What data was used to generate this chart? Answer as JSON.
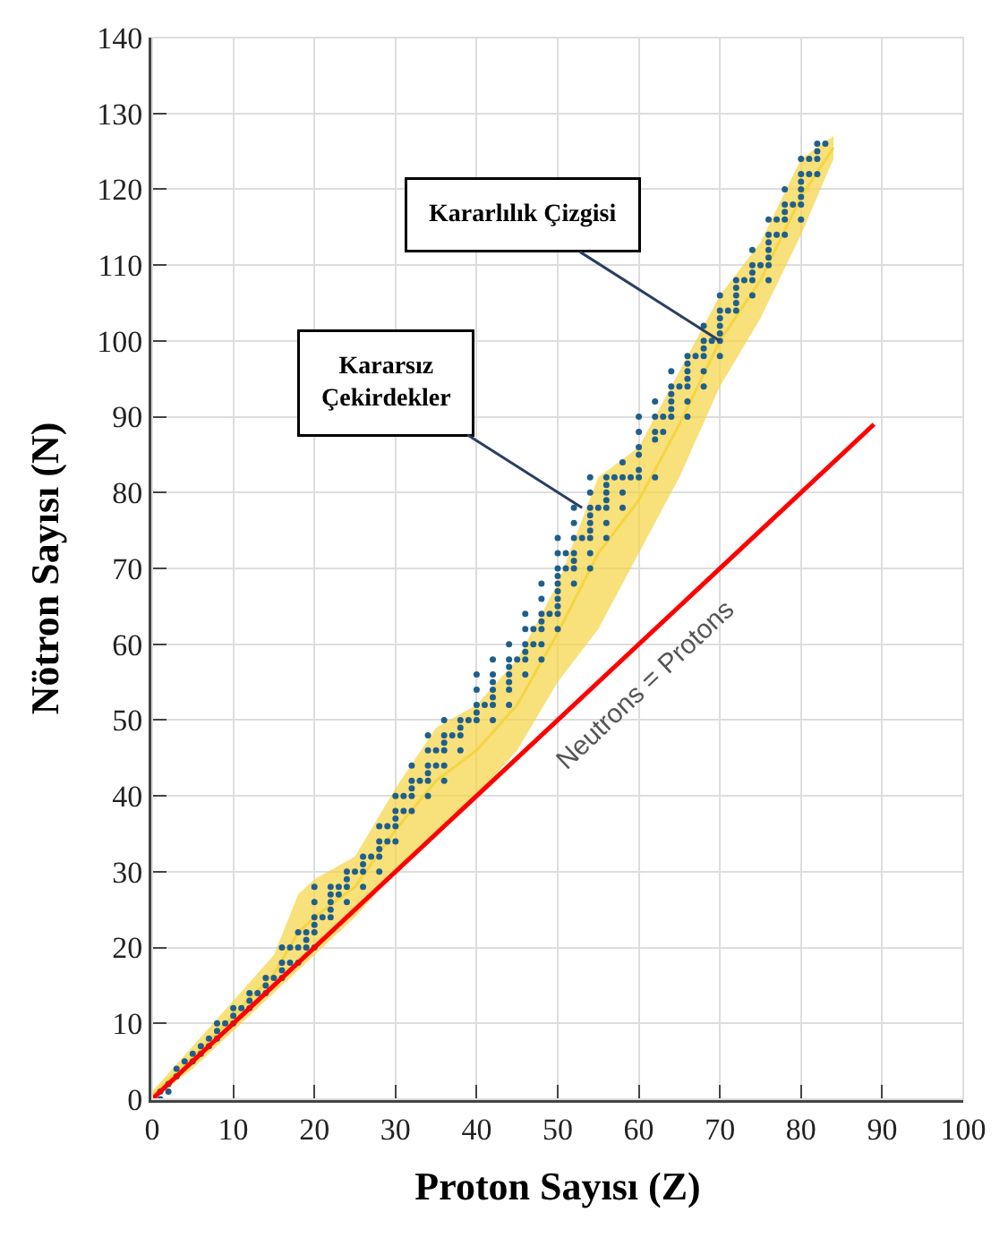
{
  "chart_data": {
    "type": "scatter",
    "xlabel": "Proton Sayısı (Z)",
    "ylabel": "Nötron Sayısı (N)",
    "xlim": [
      0,
      100
    ],
    "xticks": [
      0,
      10,
      20,
      30,
      40,
      50,
      60,
      70,
      80,
      90,
      100
    ],
    "ylim": [
      0,
      140
    ],
    "yticks": [
      0,
      10,
      20,
      30,
      40,
      50,
      60,
      70,
      80,
      90,
      100,
      110,
      120,
      130,
      140
    ],
    "grid": true,
    "legend": false,
    "series": [
      {
        "type": "line",
        "color": "#f5d442",
        "x": [
          0,
          5,
          10,
          15,
          18,
          20,
          25,
          30,
          35,
          40,
          45,
          50,
          55,
          60,
          65,
          70,
          75,
          80,
          84
        ],
        "values": [
          0.5,
          5.5,
          11,
          16.5,
          22,
          24,
          28,
          35.5,
          42,
          46,
          52,
          61.5,
          72,
          79,
          89,
          100,
          108,
          119,
          125.5
        ],
        "lower": [
          0,
          4,
          9,
          14,
          17,
          19,
          24,
          30,
          35,
          40,
          46,
          55,
          62,
          72,
          82,
          94,
          103,
          114,
          124
        ],
        "upper": [
          1,
          7,
          13,
          19,
          27,
          29,
          32,
          41,
          49,
          52,
          58,
          68,
          82,
          86,
          96,
          106,
          113,
          124,
          127
        ]
      },
      {
        "marker": "circle",
        "color": "#1f5f8b",
        "x": [
          1,
          1,
          2,
          2,
          3,
          3,
          4,
          5,
          5,
          6,
          6,
          7,
          7,
          8,
          8,
          8,
          9,
          10,
          10,
          10,
          11,
          12,
          12,
          12,
          13,
          14,
          14,
          14,
          15,
          16,
          16,
          16,
          16,
          17,
          17,
          18,
          18,
          18,
          19,
          19,
          19,
          20,
          20,
          20,
          20,
          20,
          20,
          21,
          22,
          22,
          22,
          22,
          22,
          23,
          23,
          24,
          24,
          24,
          24,
          25,
          26,
          26,
          26,
          26,
          27,
          28,
          28,
          28,
          28,
          28,
          29,
          29,
          30,
          30,
          30,
          30,
          30,
          31,
          31,
          32,
          32,
          32,
          32,
          32,
          33,
          34,
          34,
          34,
          34,
          34,
          34,
          35,
          35,
          36,
          36,
          36,
          36,
          36,
          36,
          37,
          38,
          38,
          38,
          38,
          39,
          40,
          40,
          40,
          40,
          40,
          41,
          42,
          42,
          42,
          42,
          42,
          42,
          42,
          44,
          44,
          44,
          44,
          44,
          44,
          44,
          45,
          46,
          46,
          46,
          46,
          46,
          46,
          47,
          47,
          48,
          48,
          48,
          48,
          48,
          48,
          48,
          49,
          50,
          50,
          50,
          50,
          50,
          50,
          50,
          50,
          50,
          50,
          51,
          51,
          52,
          52,
          52,
          52,
          52,
          52,
          52,
          53,
          54,
          54,
          54,
          54,
          54,
          54,
          54,
          54,
          54,
          55,
          56,
          56,
          56,
          56,
          56,
          56,
          56,
          57,
          58,
          58,
          58,
          58,
          59,
          60,
          60,
          60,
          60,
          60,
          60,
          62,
          62,
          62,
          62,
          62,
          63,
          63,
          64,
          64,
          64,
          64,
          64,
          64,
          65,
          66,
          66,
          66,
          66,
          66,
          66,
          66,
          67,
          68,
          68,
          68,
          68,
          68,
          68,
          69,
          70,
          70,
          70,
          70,
          70,
          70,
          70,
          71,
          72,
          72,
          72,
          72,
          72,
          73,
          74,
          74,
          74,
          74,
          74,
          75,
          76,
          76,
          76,
          76,
          76,
          76,
          76,
          77,
          77,
          78,
          78,
          78,
          78,
          78,
          79,
          80,
          80,
          80,
          80,
          80,
          80,
          80,
          81,
          81,
          82,
          82,
          82,
          82,
          83
        ],
        "values": [
          0,
          1,
          1,
          2,
          3,
          4,
          5,
          5,
          6,
          6,
          7,
          7,
          8,
          8,
          9,
          10,
          10,
          10,
          11,
          12,
          12,
          12,
          13,
          14,
          14,
          14,
          15,
          16,
          16,
          16,
          17,
          18,
          20,
          18,
          20,
          18,
          20,
          22,
          20,
          21,
          22,
          20,
          22,
          23,
          24,
          26,
          28,
          24,
          24,
          25,
          26,
          27,
          28,
          27,
          28,
          26,
          28,
          29,
          30,
          30,
          28,
          30,
          31,
          32,
          32,
          30,
          32,
          33,
          34,
          36,
          34,
          36,
          34,
          36,
          37,
          38,
          40,
          38,
          40,
          38,
          40,
          41,
          42,
          44,
          42,
          40,
          42,
          43,
          44,
          46,
          48,
          44,
          46,
          42,
          44,
          46,
          47,
          48,
          50,
          48,
          46,
          48,
          49,
          50,
          50,
          50,
          51,
          52,
          54,
          56,
          52,
          50,
          52,
          53,
          54,
          55,
          56,
          58,
          52,
          54,
          55,
          56,
          57,
          58,
          60,
          58,
          56,
          58,
          59,
          60,
          62,
          64,
          60,
          62,
          58,
          60,
          62,
          63,
          64,
          66,
          68,
          64,
          62,
          64,
          65,
          66,
          67,
          68,
          69,
          70,
          72,
          74,
          70,
          72,
          68,
          70,
          71,
          72,
          74,
          76,
          78,
          74,
          70,
          72,
          74,
          75,
          76,
          77,
          78,
          80,
          82,
          78,
          74,
          76,
          78,
          79,
          80,
          81,
          82,
          82,
          78,
          80,
          82,
          84,
          82,
          82,
          83,
          85,
          86,
          88,
          90,
          82,
          87,
          88,
          90,
          92,
          88,
          90,
          90,
          91,
          92,
          93,
          94,
          96,
          94,
          90,
          92,
          94,
          95,
          96,
          97,
          98,
          98,
          94,
          96,
          98,
          99,
          100,
          102,
          100,
          98,
          100,
          101,
          102,
          103,
          104,
          106,
          104,
          104,
          105,
          106,
          107,
          108,
          108,
          106,
          108,
          109,
          110,
          112,
          110,
          108,
          110,
          111,
          112,
          113,
          114,
          116,
          114,
          116,
          114,
          116,
          117,
          118,
          120,
          118,
          116,
          118,
          119,
          120,
          121,
          122,
          124,
          122,
          124,
          122,
          124,
          125,
          126,
          126
        ]
      },
      {
        "type": "line",
        "name": "Neutrons = Protons",
        "color": "#ff0000",
        "x": [
          0,
          89
        ],
        "values": [
          0,
          89
        ]
      }
    ],
    "annotations": [
      {
        "text": "Kararlılık Çizgisi",
        "x": 70,
        "y": 100
      },
      {
        "text": "Kararsız\nÇekirdekler",
        "x": 53,
        "y": 78
      }
    ]
  }
}
